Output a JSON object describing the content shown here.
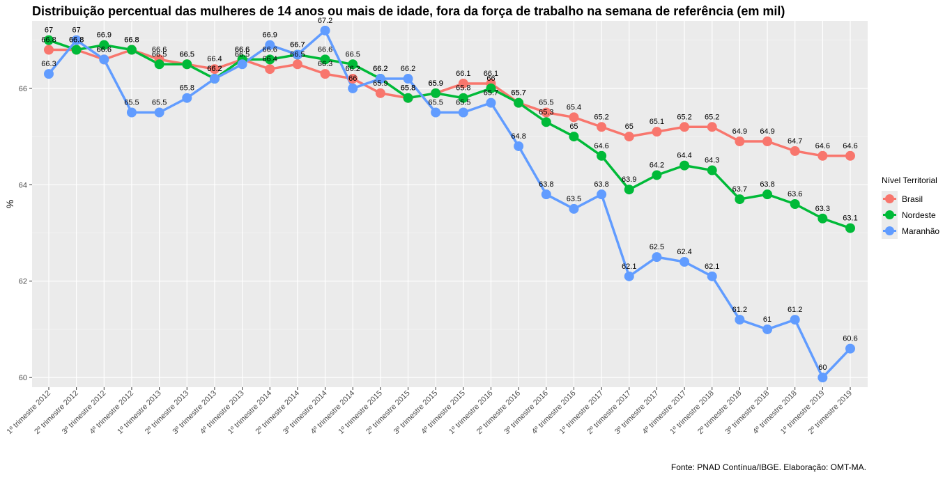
{
  "chart_data": {
    "type": "line",
    "title": "Distribuição percentual das mulheres de 14 anos ou mais de idade, fora da força de trabalho na semana de referência (em mil)",
    "caption": "Fonte: PNAD Contínua/IBGE. Elaboração: OMT-MA.",
    "ylabel": "%",
    "xlabel": "",
    "ylim": [
      59.8,
      67.4
    ],
    "yticks": [
      "60",
      "62",
      "64",
      "66"
    ],
    "grid": true,
    "legend_position": "right",
    "legend_title": "Nível Territorial",
    "categories": [
      "1º trimestre 2012",
      "2º trimestre 2012",
      "3º trimestre 2012",
      "4º trimestre 2012",
      "1º trimestre 2013",
      "2º trimestre 2013",
      "3º trimestre 2013",
      "4º trimestre 2013",
      "1º trimestre 2014",
      "2º trimestre 2014",
      "3º trimestre 2014",
      "4º trimestre 2014",
      "1º trimestre 2015",
      "2º trimestre 2015",
      "3º trimestre 2015",
      "4º trimestre 2015",
      "1º trimestre 2016",
      "2º trimestre 2016",
      "3º trimestre 2016",
      "4º trimestre 2016",
      "1º trimestre 2017",
      "2º trimestre 2017",
      "3º trimestre 2017",
      "4º trimestre 2017",
      "1º trimestre 2018",
      "2º trimestre 2018",
      "3º trimestre 2018",
      "4º trimestre 2018",
      "1º trimestre 2019",
      "2º trimestre 2019"
    ],
    "series": [
      {
        "name": "Brasil",
        "color": "#f8766d",
        "values": [
          66.8,
          66.8,
          66.6,
          66.8,
          66.6,
          66.5,
          66.4,
          66.6,
          66.4,
          66.5,
          66.3,
          66.2,
          65.9,
          65.8,
          65.9,
          66.1,
          66.1,
          65.7,
          65.5,
          65.4,
          65.2,
          65.0,
          65.1,
          65.2,
          65.2,
          64.9,
          64.9,
          64.7,
          64.6,
          64.6
        ],
        "labels": [
          "66.8",
          "66.8",
          "66.6",
          "66.8",
          "66.6",
          "66.5",
          "66.4",
          "66.6",
          "66.4",
          "66.5",
          "66.3",
          "66.2",
          "65.9",
          "65.8",
          "65.9",
          "66.1",
          "66.1",
          "65.7",
          "65.5",
          "65.4",
          "65.2",
          "65",
          "65.1",
          "65.2",
          "65.2",
          "64.9",
          "64.9",
          "64.7",
          "64.6",
          "64.6"
        ]
      },
      {
        "name": "Nordeste",
        "color": "#00ba38",
        "values": [
          67.0,
          66.8,
          66.9,
          66.8,
          66.5,
          66.5,
          66.2,
          66.6,
          66.6,
          66.7,
          66.6,
          66.5,
          66.2,
          65.8,
          65.9,
          65.8,
          66.0,
          65.7,
          65.3,
          65.0,
          64.6,
          63.9,
          64.2,
          64.4,
          64.3,
          63.7,
          63.8,
          63.6,
          63.3,
          63.1
        ],
        "labels": [
          "67",
          "66.8",
          "66.9",
          "66.8",
          "66.5",
          "66.5",
          "66.2",
          "66.6",
          "66.6",
          "66.7",
          "66.6",
          "66.5",
          "66.2",
          "65.8",
          "65.9",
          "65.8",
          "66",
          "65.7",
          "65.3",
          "65",
          "64.6",
          "63.9",
          "64.2",
          "64.4",
          "64.3",
          "63.7",
          "63.8",
          "63.6",
          "63.3",
          "63.1"
        ]
      },
      {
        "name": "Maranhão",
        "color": "#619cff",
        "values": [
          66.3,
          67.0,
          66.6,
          65.5,
          65.5,
          65.8,
          66.2,
          66.5,
          66.9,
          66.7,
          67.2,
          66.0,
          66.2,
          66.2,
          65.5,
          65.5,
          65.7,
          64.8,
          63.8,
          63.5,
          63.8,
          62.1,
          62.5,
          62.4,
          62.1,
          61.2,
          61.0,
          61.2,
          60.0,
          60.6
        ],
        "labels": [
          "66.3",
          "67",
          "66.6",
          "65.5",
          "65.5",
          "65.8",
          "66.2",
          "66.5",
          "66.9",
          "66.7",
          "67.2",
          "66",
          "66.2",
          "66.2",
          "65.5",
          "65.5",
          "65.7",
          "64.8",
          "63.8",
          "63.5",
          "63.8",
          "62.1",
          "62.5",
          "62.4",
          "62.1",
          "61.2",
          "61",
          "61.2",
          "60",
          "60.6"
        ]
      }
    ]
  }
}
